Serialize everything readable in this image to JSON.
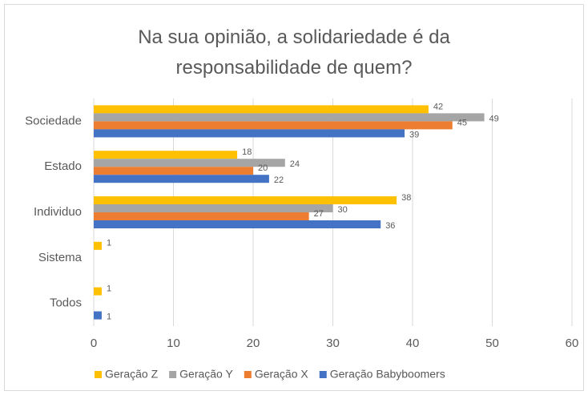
{
  "chart_data": {
    "type": "barh",
    "title": "Na sua opinião, a solidariedade é da responsabilidade de quem?",
    "categories": [
      "Sociedade",
      "Estado",
      "Individuo",
      "Sistema",
      "Todos"
    ],
    "series": [
      {
        "name": "Geração Z",
        "color": "#FFC000",
        "values": [
          42,
          18,
          38,
          1,
          1
        ]
      },
      {
        "name": "Geração Y",
        "color": "#A5A5A5",
        "values": [
          49,
          24,
          30,
          null,
          null
        ]
      },
      {
        "name": "Geração X",
        "color": "#ED7D31",
        "values": [
          45,
          20,
          27,
          null,
          null
        ]
      },
      {
        "name": "Geração Babyboomers",
        "color": "#4472C4",
        "values": [
          39,
          22,
          36,
          null,
          1
        ]
      }
    ],
    "xlim": [
      0,
      60
    ],
    "xticks": [
      0,
      10,
      20,
      30,
      40,
      50,
      60
    ],
    "grid": true,
    "legend": "bottom"
  }
}
